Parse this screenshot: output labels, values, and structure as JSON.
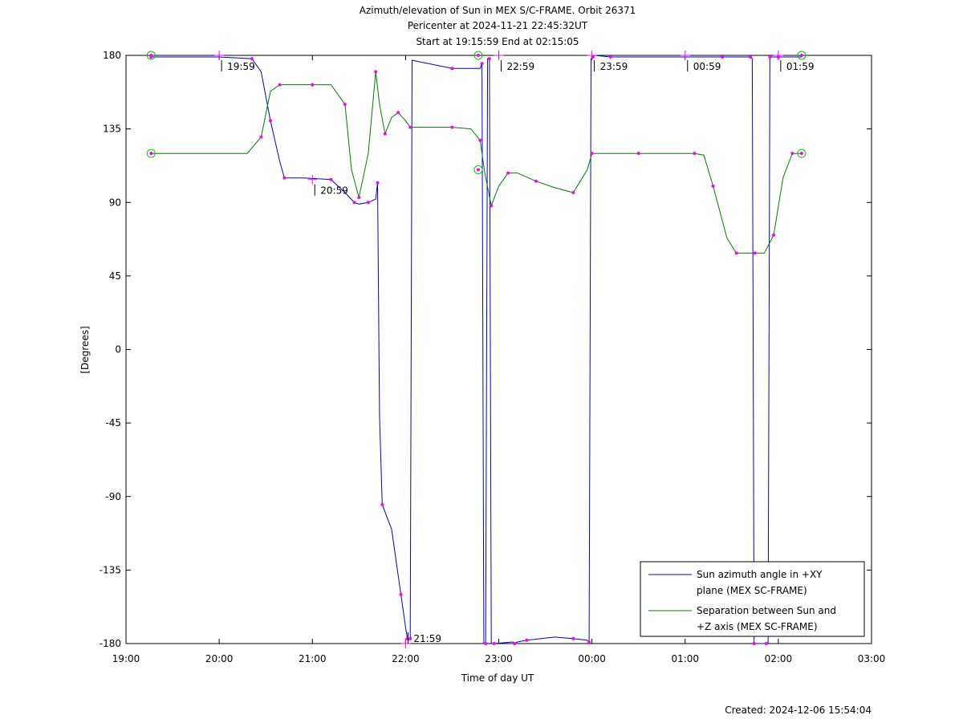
{
  "chart_data": {
    "type": "line",
    "title_lines": [
      "Azimuth/elevation of Sun in MEX S/C-FRAME.  Orbit 26371",
      "Pericenter at 2024-11-21 22:45:32UT",
      "Start at 19:15:59 End at 02:15:05"
    ],
    "xlabel": "Time of day UT",
    "ylabel": "[Degrees]",
    "footer": "Created: 2024-12-06 15:54:04",
    "x_unit": "hours since 19:00",
    "xlim": [
      0,
      8
    ],
    "ylim": [
      -180,
      180
    ],
    "x_ticks": [
      {
        "v": 0,
        "label": "19:00"
      },
      {
        "v": 1,
        "label": "20:00"
      },
      {
        "v": 2,
        "label": "21:00"
      },
      {
        "v": 3,
        "label": "22:00"
      },
      {
        "v": 4,
        "label": "23:00"
      },
      {
        "v": 5,
        "label": "00:00"
      },
      {
        "v": 6,
        "label": "01:00"
      },
      {
        "v": 7,
        "label": "02:00"
      },
      {
        "v": 8,
        "label": "03:00"
      }
    ],
    "y_ticks": [
      {
        "v": 180,
        "label": "180"
      },
      {
        "v": 135,
        "label": "135"
      },
      {
        "v": 90,
        "label": "90"
      },
      {
        "v": 45,
        "label": "45"
      },
      {
        "v": 0,
        "label": "0"
      },
      {
        "v": -45,
        "label": "-45"
      },
      {
        "v": -90,
        "label": "-90"
      },
      {
        "v": -135,
        "label": "-135"
      },
      {
        "v": -180,
        "label": "-180"
      }
    ],
    "legend": {
      "placement": "lower-right",
      "entries": [
        {
          "series": 0,
          "lines": [
            "Sun azimuth angle in +XY",
            "plane (MEX SC-FRAME)"
          ]
        },
        {
          "series": 1,
          "lines": [
            "Separation between Sun and",
            "+Z axis (MEX SC-FRAME)"
          ]
        }
      ]
    },
    "series": [
      {
        "name": "Sun azimuth angle in +XY plane (MEX SC-FRAME)",
        "color": "#0000cc",
        "x": [
          0.27,
          1.0,
          1.35,
          1.45,
          1.55,
          1.65,
          1.7,
          1.9,
          2.2,
          2.35,
          2.45,
          2.5,
          2.6,
          2.68,
          2.7,
          2.72,
          2.75,
          2.85,
          2.95,
          3.0,
          3.02,
          3.03,
          3.05,
          3.07,
          3.5,
          3.8,
          3.82,
          3.84,
          3.86,
          3.88,
          3.9,
          3.92,
          3.95,
          4.15,
          4.17,
          4.2,
          4.3,
          4.6,
          4.8,
          4.95,
          4.97,
          4.99,
          5.01,
          5.03,
          5.2,
          6.0,
          6.4,
          6.6,
          6.7,
          6.72,
          6.74,
          6.76,
          6.87,
          6.89,
          6.91,
          6.93,
          7.0,
          7.25
        ],
        "y": [
          179,
          179,
          178,
          170,
          140,
          115,
          105,
          105,
          104,
          96,
          90,
          89,
          90,
          92,
          102,
          -40,
          -95,
          -110,
          -150,
          -170,
          -177,
          -178,
          -177,
          177,
          172,
          172,
          175,
          -180,
          -180,
          178,
          178,
          -180,
          -180,
          -179,
          -180,
          -179,
          -178,
          -176,
          -177,
          -178,
          -179,
          178,
          179,
          180,
          179,
          179,
          179,
          179,
          179,
          178,
          -180,
          -180,
          -180,
          -180,
          179,
          179,
          179,
          179
        ]
      },
      {
        "name": "Separation between Sun and +Z axis (MEX SC-FRAME)",
        "color": "#007f00",
        "x": [
          0.27,
          1.3,
          1.45,
          1.55,
          1.65,
          1.8,
          2.0,
          2.2,
          2.35,
          2.42,
          2.5,
          2.6,
          2.68,
          2.72,
          2.78,
          2.85,
          2.92,
          3.0,
          3.05,
          3.2,
          3.5,
          3.7,
          3.8,
          3.85,
          3.92,
          4.0,
          4.1,
          4.2,
          4.4,
          4.6,
          4.8,
          4.95,
          5.0,
          5.05,
          5.5,
          5.8,
          6.1,
          6.2,
          6.3,
          6.45,
          6.55,
          6.6,
          6.75,
          6.85,
          6.95,
          7.05,
          7.15,
          7.25
        ],
        "y": [
          120,
          120,
          130,
          158,
          162,
          162,
          162,
          162,
          150,
          110,
          93,
          120,
          170,
          150,
          132,
          142,
          145,
          140,
          136,
          136,
          136,
          135,
          128,
          108,
          88,
          100,
          108,
          108,
          103,
          99,
          96,
          110,
          120,
          120,
          120,
          120,
          120,
          119,
          100,
          68,
          59,
          59,
          59,
          59,
          70,
          105,
          120,
          120
        ]
      }
    ],
    "markers": [
      {
        "series": 1,
        "x": 0.27,
        "y": 180,
        "kind": "circle"
      },
      {
        "series": 1,
        "x": 0.27,
        "y": 120,
        "kind": "circle"
      },
      {
        "series": 1,
        "x": 3.78,
        "y": 180,
        "kind": "circle"
      },
      {
        "series": 1,
        "x": 3.78,
        "y": 110,
        "kind": "circle"
      },
      {
        "series": 1,
        "x": 7.25,
        "y": 180,
        "kind": "circle"
      },
      {
        "series": 1,
        "x": 7.25,
        "y": 120,
        "kind": "circle"
      }
    ],
    "hour_annotations": [
      {
        "x": 1.0,
        "y": 180,
        "label": "19:59"
      },
      {
        "x": 2.0,
        "y": 104,
        "label": "20:59"
      },
      {
        "x": 3.0,
        "y": -180,
        "label": "21:59"
      },
      {
        "x": 4.0,
        "y": 180,
        "label": "22:59"
      },
      {
        "x": 5.0,
        "y": 180,
        "label": "23:59"
      },
      {
        "x": 6.0,
        "y": 180,
        "label": "00:59"
      },
      {
        "x": 7.0,
        "y": 180,
        "label": "01:59"
      }
    ]
  }
}
